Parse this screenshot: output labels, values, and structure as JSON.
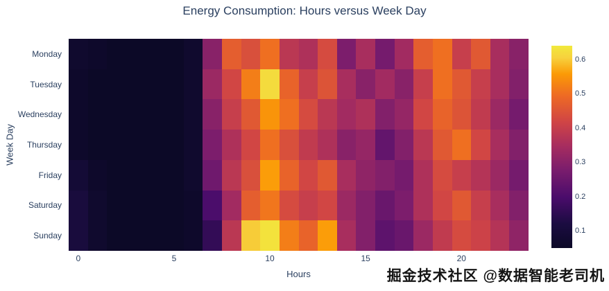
{
  "chart_data": {
    "type": "heatmap",
    "title": "Energy Consumption: Hours versus Week Day",
    "xlabel": "Hours",
    "ylabel": "Week Day",
    "x": [
      0,
      1,
      2,
      3,
      4,
      5,
      6,
      7,
      8,
      9,
      10,
      11,
      12,
      13,
      14,
      15,
      16,
      17,
      18,
      19,
      20,
      21,
      22,
      23
    ],
    "y": [
      "Monday",
      "Tuesday",
      "Wednesday",
      "Thursday",
      "Friday",
      "Saturday",
      "Sunday"
    ],
    "z": [
      [
        0.07,
        0.06,
        0.05,
        0.05,
        0.05,
        0.05,
        0.07,
        0.3,
        0.47,
        0.44,
        0.5,
        0.38,
        0.36,
        0.43,
        0.28,
        0.35,
        0.27,
        0.34,
        0.47,
        0.5,
        0.4,
        0.46,
        0.35,
        0.3
      ],
      [
        0.06,
        0.05,
        0.05,
        0.05,
        0.05,
        0.05,
        0.07,
        0.33,
        0.42,
        0.52,
        0.62,
        0.48,
        0.4,
        0.45,
        0.35,
        0.3,
        0.34,
        0.3,
        0.4,
        0.5,
        0.46,
        0.4,
        0.35,
        0.29
      ],
      [
        0.06,
        0.05,
        0.05,
        0.05,
        0.05,
        0.05,
        0.07,
        0.3,
        0.4,
        0.46,
        0.55,
        0.5,
        0.43,
        0.38,
        0.34,
        0.36,
        0.29,
        0.32,
        0.42,
        0.48,
        0.45,
        0.39,
        0.33,
        0.27
      ],
      [
        0.06,
        0.05,
        0.05,
        0.05,
        0.05,
        0.05,
        0.07,
        0.28,
        0.36,
        0.42,
        0.5,
        0.44,
        0.39,
        0.36,
        0.3,
        0.32,
        0.24,
        0.29,
        0.38,
        0.46,
        0.5,
        0.42,
        0.35,
        0.29
      ],
      [
        0.09,
        0.06,
        0.05,
        0.05,
        0.05,
        0.05,
        0.07,
        0.26,
        0.38,
        0.44,
        0.56,
        0.48,
        0.42,
        0.46,
        0.35,
        0.31,
        0.29,
        0.27,
        0.36,
        0.43,
        0.4,
        0.37,
        0.33,
        0.27
      ],
      [
        0.11,
        0.07,
        0.05,
        0.05,
        0.05,
        0.05,
        0.06,
        0.2,
        0.34,
        0.47,
        0.51,
        0.43,
        0.4,
        0.42,
        0.33,
        0.29,
        0.25,
        0.28,
        0.36,
        0.42,
        0.46,
        0.4,
        0.35,
        0.29
      ],
      [
        0.11,
        0.07,
        0.05,
        0.05,
        0.05,
        0.05,
        0.06,
        0.16,
        0.38,
        0.6,
        0.63,
        0.52,
        0.48,
        0.56,
        0.35,
        0.29,
        0.23,
        0.25,
        0.33,
        0.39,
        0.43,
        0.41,
        0.37,
        0.31
      ]
    ],
    "zmin": 0.05,
    "zmax": 0.64,
    "xticks": [
      0,
      5,
      10,
      15,
      20
    ],
    "colorbar_ticks": [
      0.6,
      0.5,
      0.4,
      0.3,
      0.2,
      0.1
    ],
    "colorscale": [
      [
        0.0,
        "#0c0927"
      ],
      [
        0.12,
        "#1b0c41"
      ],
      [
        0.25,
        "#4a0c6b"
      ],
      [
        0.38,
        "#781c6d"
      ],
      [
        0.5,
        "#a52c60"
      ],
      [
        0.62,
        "#cf4446"
      ],
      [
        0.75,
        "#ed6925"
      ],
      [
        0.86,
        "#fb9a06"
      ],
      [
        0.94,
        "#f7d13d"
      ],
      [
        1.0,
        "#f1e93c"
      ]
    ],
    "legend_position": "right-colorbar",
    "grid": false
  },
  "colors": {
    "title_text": "#2a3f5f",
    "axis_text": "#2a3f5f",
    "background": "#ffffff"
  },
  "watermark": {
    "text": "掘金技术社区 @数据智能老司机"
  }
}
